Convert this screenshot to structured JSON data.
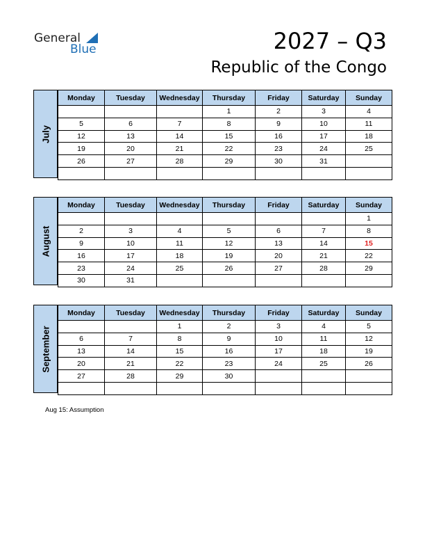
{
  "logo": {
    "general": "General",
    "blue": "Blue"
  },
  "title": "2027 – Q3",
  "subtitle": "Republic of the Congo",
  "weekdays": [
    "Monday",
    "Tuesday",
    "Wednesday",
    "Thursday",
    "Friday",
    "Saturday",
    "Sunday"
  ],
  "months": [
    {
      "name": "July",
      "weeks": [
        [
          "",
          "",
          "",
          "1",
          "2",
          "3",
          "4"
        ],
        [
          "5",
          "6",
          "7",
          "8",
          "9",
          "10",
          "11"
        ],
        [
          "12",
          "13",
          "14",
          "15",
          "16",
          "17",
          "18"
        ],
        [
          "19",
          "20",
          "21",
          "22",
          "23",
          "24",
          "25"
        ],
        [
          "26",
          "27",
          "28",
          "29",
          "30",
          "31",
          ""
        ],
        [
          "",
          "",
          "",
          "",
          "",
          "",
          ""
        ]
      ],
      "holidays": []
    },
    {
      "name": "August",
      "weeks": [
        [
          "",
          "",
          "",
          "",
          "",
          "",
          "1"
        ],
        [
          "2",
          "3",
          "4",
          "5",
          "6",
          "7",
          "8"
        ],
        [
          "9",
          "10",
          "11",
          "12",
          "13",
          "14",
          "15"
        ],
        [
          "16",
          "17",
          "18",
          "19",
          "20",
          "21",
          "22"
        ],
        [
          "23",
          "24",
          "25",
          "26",
          "27",
          "28",
          "29"
        ],
        [
          "30",
          "31",
          "",
          "",
          "",
          "",
          ""
        ]
      ],
      "holidays": [
        "15"
      ]
    },
    {
      "name": "September",
      "weeks": [
        [
          "",
          "",
          "1",
          "2",
          "3",
          "4",
          "5"
        ],
        [
          "6",
          "7",
          "8",
          "9",
          "10",
          "11",
          "12"
        ],
        [
          "13",
          "14",
          "15",
          "16",
          "17",
          "18",
          "19"
        ],
        [
          "20",
          "21",
          "22",
          "23",
          "24",
          "25",
          "26"
        ],
        [
          "27",
          "28",
          "29",
          "30",
          "",
          "",
          ""
        ],
        [
          "",
          "",
          "",
          "",
          "",
          "",
          ""
        ]
      ],
      "holidays": []
    }
  ],
  "note": "Aug 15: Assumption",
  "colors": {
    "header": "#bdd6ee",
    "holiday": "#e02020",
    "brand": "#1f6fb5"
  }
}
